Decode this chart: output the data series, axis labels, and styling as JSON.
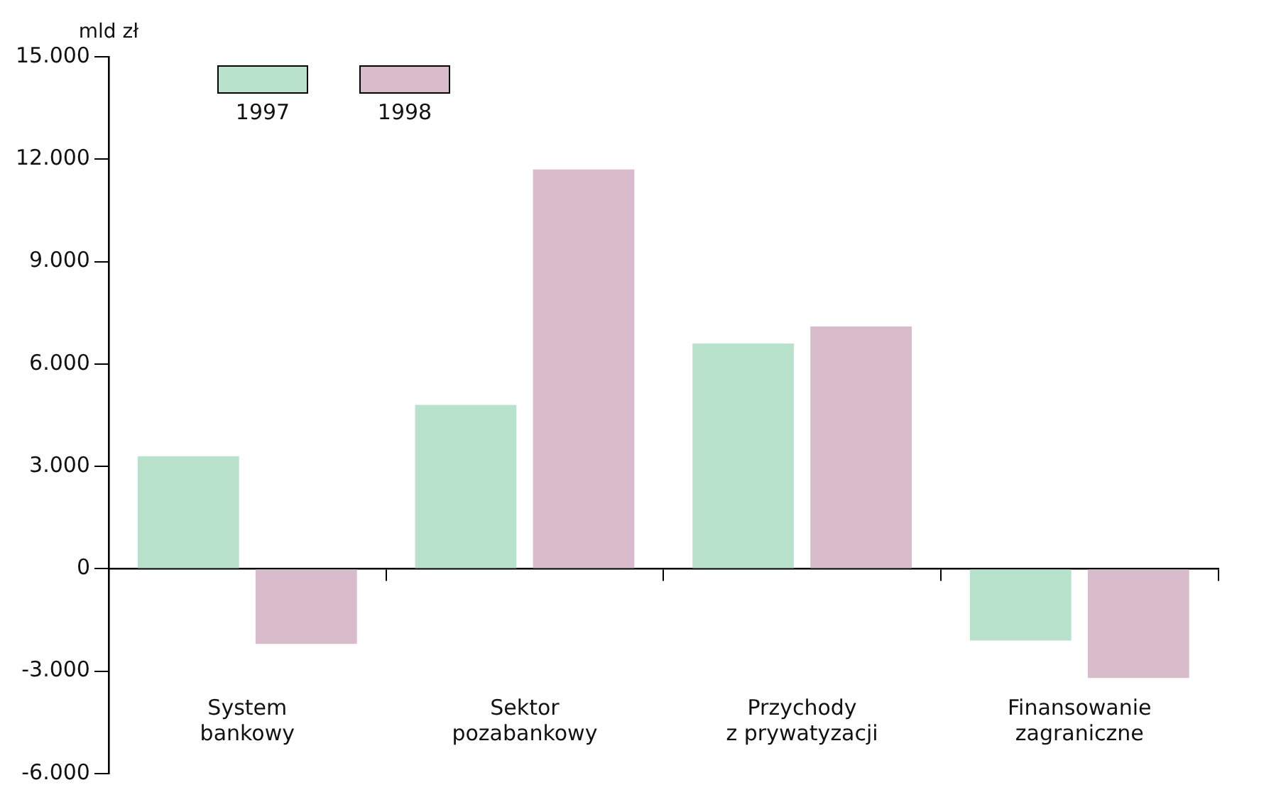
{
  "chart_data": {
    "type": "bar",
    "ylabel": "mld zł",
    "categories": [
      "System bankowy",
      "Sektor pozabankowy",
      "Przychody z prywatyzacji",
      "Finansowanie zagraniczne"
    ],
    "series": [
      {
        "name": "1997",
        "color": "#b9e2cc",
        "values": [
          3300,
          4800,
          6600,
          -2100
        ]
      },
      {
        "name": "1998",
        "color": "#d9bccb",
        "values": [
          -2200,
          11700,
          7100,
          -3200
        ]
      }
    ],
    "ylim": [
      -6000,
      15000
    ],
    "yticks": [
      {
        "value": -6000,
        "label": "-6.000"
      },
      {
        "value": -3000,
        "label": "-3.000"
      },
      {
        "value": 0,
        "label": "0"
      },
      {
        "value": 3000,
        "label": "3.000"
      },
      {
        "value": 6000,
        "label": "6.000"
      },
      {
        "value": 9000,
        "label": "9.000"
      },
      {
        "value": 12000,
        "label": "12.000"
      },
      {
        "value": 15000,
        "label": "15.000"
      }
    ],
    "legend": "top left"
  }
}
